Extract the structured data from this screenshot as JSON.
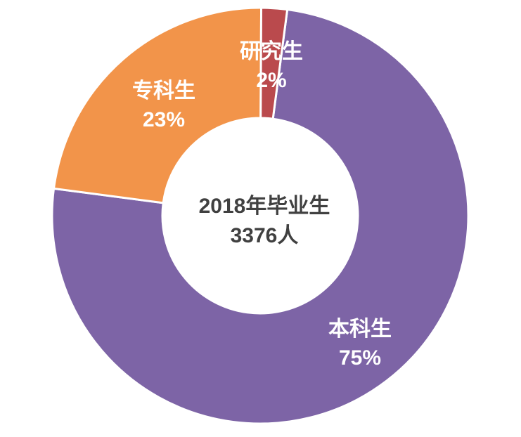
{
  "chart_data": {
    "type": "pie",
    "subtype": "donut",
    "title": "",
    "legend_position": "none",
    "categories": [
      "本科生",
      "专科生",
      "研究生"
    ],
    "values": [
      75,
      23,
      2
    ],
    "unit": "%",
    "slices": [
      {
        "label": "本科生",
        "value": 75,
        "pct_label": "75%",
        "color": "#7D64A6"
      },
      {
        "label": "专科生",
        "value": 23,
        "pct_label": "23%",
        "color": "#F2944A"
      },
      {
        "label": "研究生",
        "value": 2,
        "pct_label": "2%",
        "color": "#BA4A4D"
      }
    ],
    "center_text": {
      "line1": "2018年毕业生",
      "line2": "3376人"
    },
    "style": {
      "slice_label_color": "#FFFFFF",
      "center_text_color": "#404040",
      "slice_border_color": "#FFFFFF",
      "background": "#FFFFFF"
    }
  }
}
